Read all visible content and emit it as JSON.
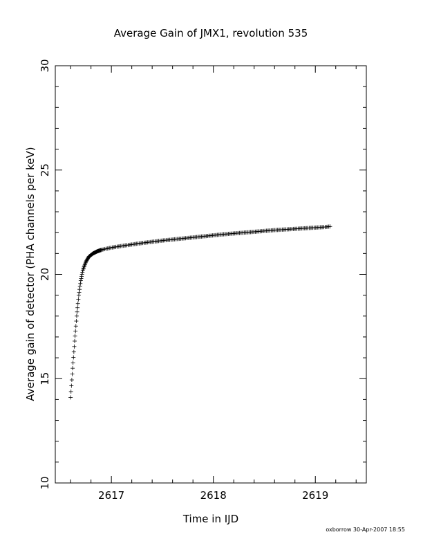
{
  "chart_data": {
    "type": "scatter",
    "title": "Average Gain of JMX1, revolution 535",
    "xlabel": "Time in IJD",
    "ylabel": "Average gain of detector (PHA channels per keV)",
    "xlim": [
      2616.45,
      2619.5
    ],
    "ylim": [
      10,
      30
    ],
    "x_ticks": [
      2617,
      2618,
      2619
    ],
    "y_ticks": [
      10,
      15,
      20,
      25,
      30
    ],
    "marker": "plus",
    "series": [
      {
        "x": [
          2616.6,
          2616.62,
          2616.64,
          2616.66,
          2616.68,
          2616.7,
          2616.72,
          2616.75,
          2616.78,
          2616.82,
          2616.86,
          2616.9,
          2616.95,
          2617.0,
          2617.1,
          2617.2,
          2617.3,
          2617.4,
          2617.5,
          2617.6,
          2617.7,
          2617.8,
          2617.9,
          2618.0,
          2618.1,
          2618.2,
          2618.3,
          2618.4,
          2618.5,
          2618.6,
          2618.7,
          2618.8,
          2618.9,
          2619.0,
          2619.1,
          2619.15
        ],
        "y": [
          14.1,
          15.5,
          16.8,
          18.0,
          19.0,
          19.7,
          20.2,
          20.6,
          20.85,
          21.0,
          21.1,
          21.17,
          21.23,
          21.28,
          21.36,
          21.43,
          21.5,
          21.56,
          21.62,
          21.67,
          21.72,
          21.77,
          21.82,
          21.87,
          21.92,
          21.96,
          22.0,
          22.04,
          22.08,
          22.12,
          22.15,
          22.18,
          22.21,
          22.24,
          22.27,
          22.3
        ]
      }
    ]
  },
  "footer": "oxborrow 30-Apr-2007 18:55"
}
